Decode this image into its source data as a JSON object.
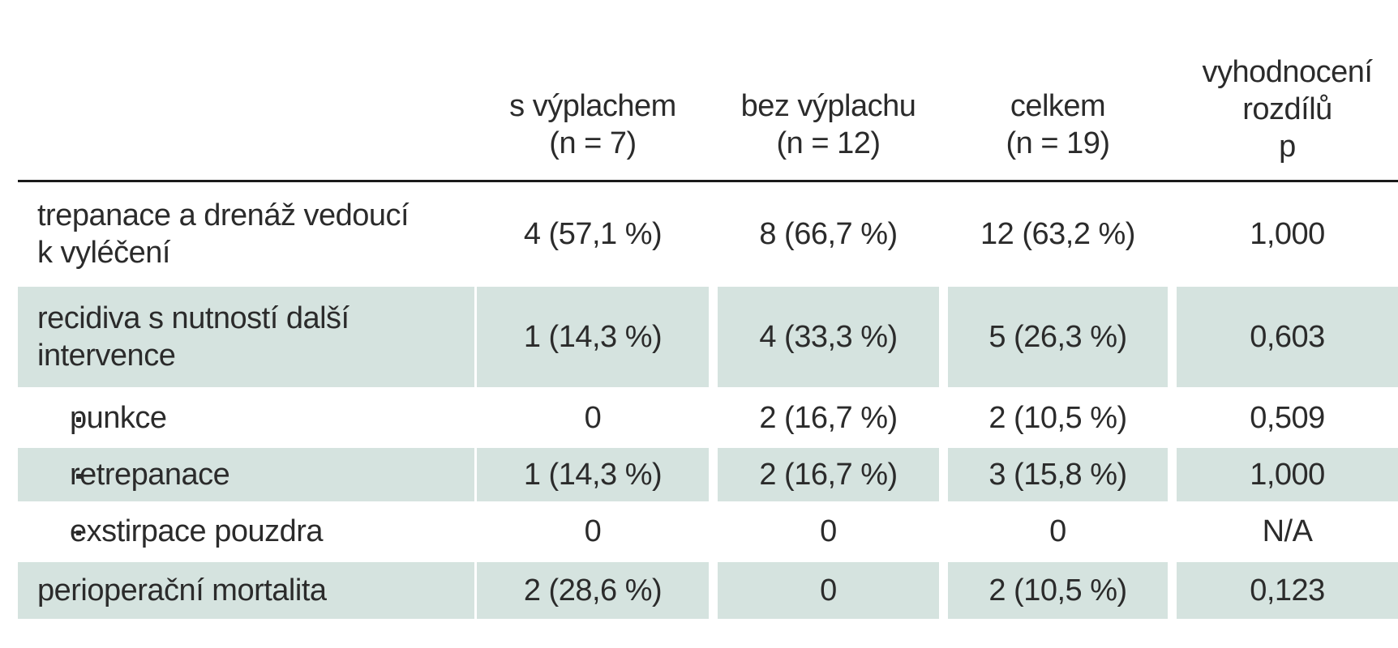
{
  "table": {
    "columns": [
      {
        "lines": [
          "s výplachem",
          "(n = 7)"
        ]
      },
      {
        "lines": [
          "bez výplachu",
          "(n = 12)"
        ]
      },
      {
        "lines": [
          "celkem",
          "(n = 19)"
        ]
      },
      {
        "lines": [
          "vyhodnocení",
          "rozdílů",
          "p"
        ]
      }
    ],
    "rows": [
      {
        "label": [
          "trepanace a drenáž vedoucí",
          "k vyléčení"
        ],
        "sub": false,
        "cells": [
          "4 (57,1 %)",
          "8 (66,7 %)",
          "12 (63,2 %)",
          "1,000"
        ]
      },
      {
        "label": [
          "recidiva s nutností další",
          "intervence"
        ],
        "sub": false,
        "cells": [
          "1 (14,3 %)",
          "4 (33,3 %)",
          "5 (26,3 %)",
          "0,603"
        ]
      },
      {
        "label": [
          "punkce"
        ],
        "sub": true,
        "cells": [
          "0",
          "2 (16,7 %)",
          "2 (10,5 %)",
          "0,509"
        ]
      },
      {
        "label": [
          "retrepanace"
        ],
        "sub": true,
        "cells": [
          "1 (14,3 %)",
          "2 (16,7 %)",
          "3 (15,8 %)",
          "1,000"
        ]
      },
      {
        "label": [
          "exstirpace pouzdra"
        ],
        "sub": true,
        "cells": [
          "0",
          "0",
          "0",
          "N/A"
        ]
      },
      {
        "label": [
          "perioperační mortalita"
        ],
        "sub": false,
        "cells": [
          "2 (28,6 %)",
          "0",
          "2 (10,5 %)",
          "0,123"
        ]
      }
    ]
  }
}
